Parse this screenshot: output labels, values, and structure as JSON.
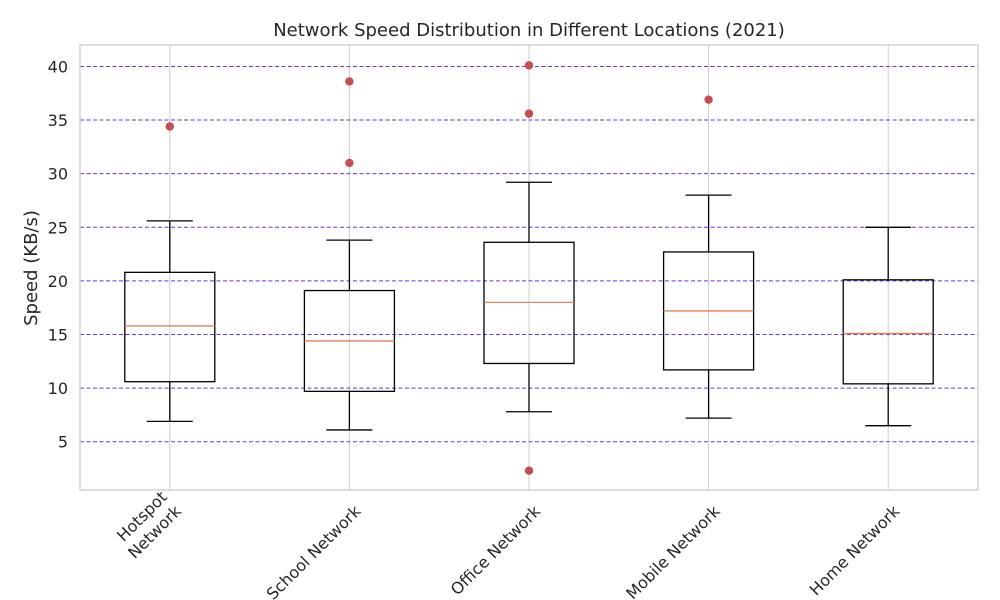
{
  "chart_data": {
    "type": "box",
    "title": "Network Speed Distribution in Different Locations (2021)",
    "xlabel": "",
    "ylabel": "Speed (KB/s)",
    "ylim": [
      0.5,
      42
    ],
    "yticks": [
      5,
      10,
      15,
      20,
      25,
      30,
      35,
      40
    ],
    "grid": {
      "vertical": true,
      "horizontal_dashed": true
    },
    "colors": {
      "box": "#000000",
      "median": "#e0825a",
      "outlier": "#c44e52",
      "grid_h": "#6a35d9",
      "grid_v": "#cccccc",
      "frame": "#cccccc"
    },
    "categories": [
      {
        "label_lines": [
          "Hotspot",
          "Network"
        ],
        "whisker_low": 6.9,
        "q1": 10.6,
        "median": 15.8,
        "q3": 20.8,
        "whisker_high": 25.6,
        "outliers": [
          34.4
        ]
      },
      {
        "label_lines": [
          "School Network"
        ],
        "whisker_low": 6.1,
        "q1": 9.7,
        "median": 14.4,
        "q3": 19.1,
        "whisker_high": 23.8,
        "outliers": [
          38.6,
          31.0
        ]
      },
      {
        "label_lines": [
          "Office Network"
        ],
        "whisker_low": 7.8,
        "q1": 12.3,
        "median": 18.0,
        "q3": 23.6,
        "whisker_high": 29.2,
        "outliers": [
          40.1,
          35.6,
          2.3
        ]
      },
      {
        "label_lines": [
          "Mobile Network"
        ],
        "whisker_low": 7.2,
        "q1": 11.7,
        "median": 17.2,
        "q3": 22.7,
        "whisker_high": 28.0,
        "outliers": [
          36.9
        ]
      },
      {
        "label_lines": [
          "Home Network"
        ],
        "whisker_low": 6.5,
        "q1": 10.4,
        "median": 15.1,
        "q3": 20.1,
        "whisker_high": 25.0,
        "outliers": []
      }
    ]
  }
}
